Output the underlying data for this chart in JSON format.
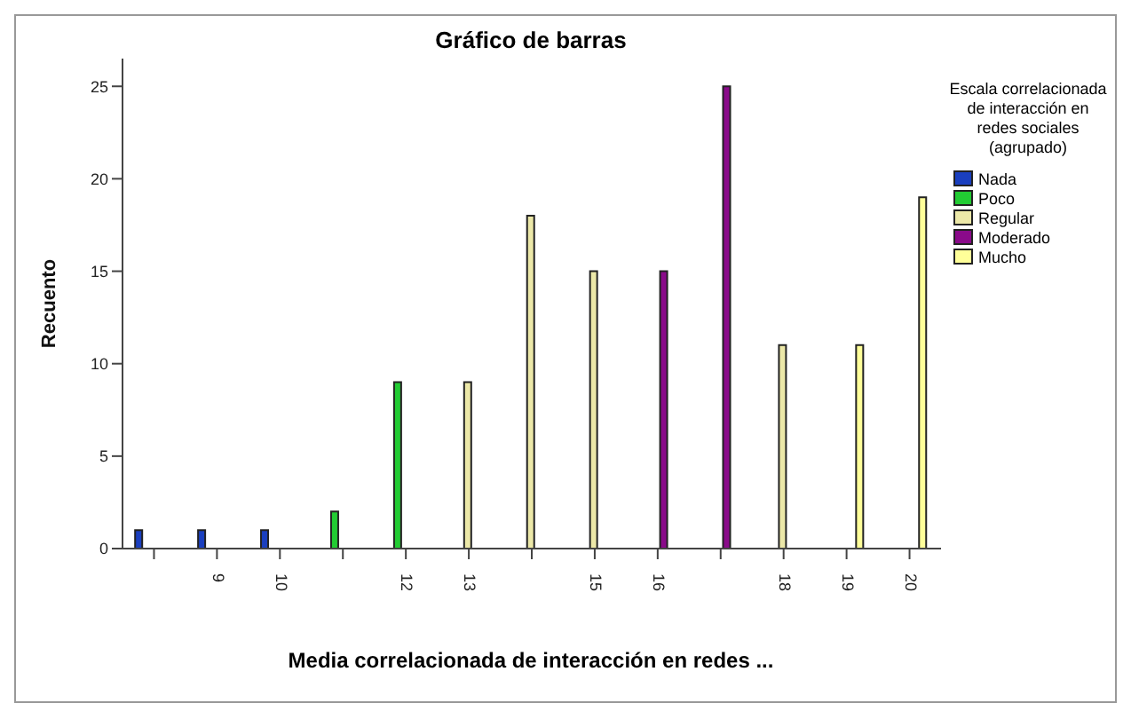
{
  "chart_data": {
    "type": "bar",
    "title": "Gráfico de barras",
    "xlabel": "Media correlacionada de interacción en redes ...",
    "ylabel": "Recuento",
    "legend_title": "Escala correlacionada de interacción en redes sociales (agrupado)",
    "categories": [
      null,
      "9",
      "10",
      null,
      "12",
      "13",
      null,
      "15",
      "16",
      null,
      "18",
      "19",
      "20"
    ],
    "series": [
      {
        "name": "Nada",
        "color": "#1a3fbf",
        "values": [
          1,
          1,
          1,
          null,
          null,
          null,
          null,
          null,
          null,
          null,
          null,
          null,
          null
        ]
      },
      {
        "name": "Poco",
        "color": "#22cc33",
        "values": [
          null,
          null,
          null,
          2,
          9,
          null,
          null,
          null,
          null,
          null,
          null,
          null,
          null
        ]
      },
      {
        "name": "Regular",
        "color": "#ece8a8",
        "values": [
          null,
          null,
          null,
          null,
          null,
          9,
          18,
          15,
          null,
          null,
          11,
          null,
          null
        ]
      },
      {
        "name": "Moderado",
        "color": "#8a0a8a",
        "values": [
          null,
          null,
          null,
          null,
          null,
          null,
          null,
          null,
          15,
          25,
          null,
          null,
          null
        ]
      },
      {
        "name": "Mucho",
        "color": "#ffff99",
        "values": [
          null,
          null,
          null,
          null,
          null,
          null,
          null,
          null,
          null,
          null,
          null,
          11,
          19
        ]
      }
    ],
    "ylim": [
      0,
      26.5
    ],
    "yticks": [
      0,
      5,
      10,
      15,
      20,
      25
    ],
    "grid": false,
    "legend": "right"
  }
}
